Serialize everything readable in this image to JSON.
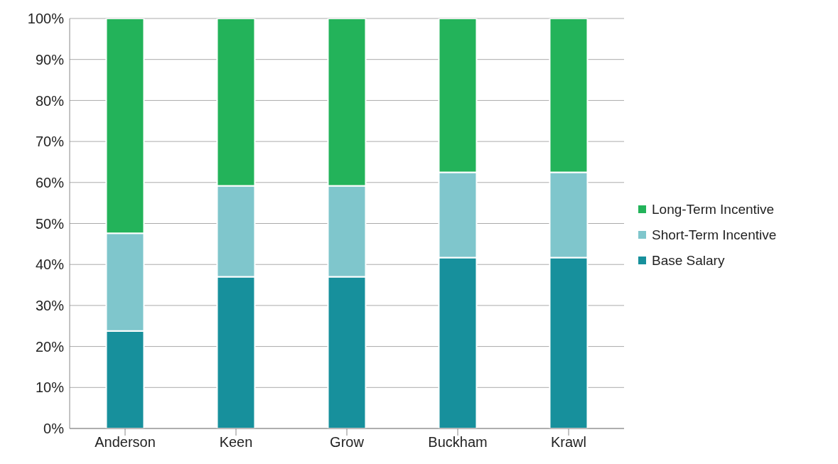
{
  "chart_data": {
    "type": "bar",
    "stacked": true,
    "categories": [
      "Anderson",
      "Keen",
      "Grow",
      "Buckham",
      "Krawl"
    ],
    "series": [
      {
        "name": "Base Salary",
        "color": "#17909c",
        "values": [
          23.8,
          37.0,
          37.0,
          41.7,
          41.7
        ]
      },
      {
        "name": "Short-Term Incentive",
        "color": "#7fc6cc",
        "values": [
          23.8,
          22.2,
          22.2,
          20.8,
          20.8
        ]
      },
      {
        "name": "Long-Term Incentive",
        "color": "#23b35a",
        "values": [
          52.4,
          40.8,
          40.8,
          37.5,
          37.5
        ]
      }
    ],
    "ylim": [
      0,
      100
    ],
    "yticks": [
      {
        "value": 0,
        "label": "0%"
      },
      {
        "value": 10,
        "label": "10%"
      },
      {
        "value": 20,
        "label": "20%"
      },
      {
        "value": 30,
        "label": "30%"
      },
      {
        "value": 40,
        "label": "40%"
      },
      {
        "value": 50,
        "label": "50%"
      },
      {
        "value": 60,
        "label": "60%"
      },
      {
        "value": 70,
        "label": "70%"
      },
      {
        "value": 80,
        "label": "80%"
      },
      {
        "value": 90,
        "label": "90%"
      },
      {
        "value": 100,
        "label": "100%"
      }
    ],
    "grid": "y",
    "legend": "right"
  }
}
